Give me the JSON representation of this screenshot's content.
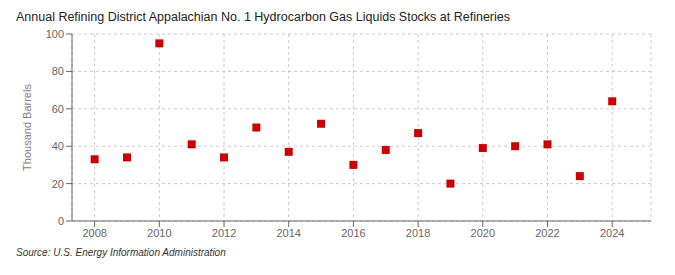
{
  "chart_data": {
    "type": "scatter",
    "title": "Annual Refining District Appalachian No. 1 Hydrocarbon Gas Liquids Stocks at Refineries",
    "ylabel": "Thousand Barrels",
    "source": "Source: U.S. Energy Information Administration",
    "x": [
      2008,
      2009,
      2010,
      2011,
      2012,
      2013,
      2014,
      2015,
      2016,
      2017,
      2018,
      2019,
      2020,
      2021,
      2022,
      2023,
      2024
    ],
    "values": [
      33,
      34,
      95,
      41,
      34,
      50,
      37,
      52,
      30,
      38,
      47,
      20,
      39,
      40,
      41,
      24,
      64
    ],
    "color": "#cc0000",
    "marker": "square",
    "xlim": [
      2007.3,
      2025.2
    ],
    "xticks": [
      2008,
      2010,
      2012,
      2014,
      2016,
      2018,
      2020,
      2022,
      2024
    ],
    "ylim": [
      0,
      100
    ],
    "yticks": [
      0,
      20,
      40,
      60,
      80,
      100
    ],
    "grid": true
  }
}
